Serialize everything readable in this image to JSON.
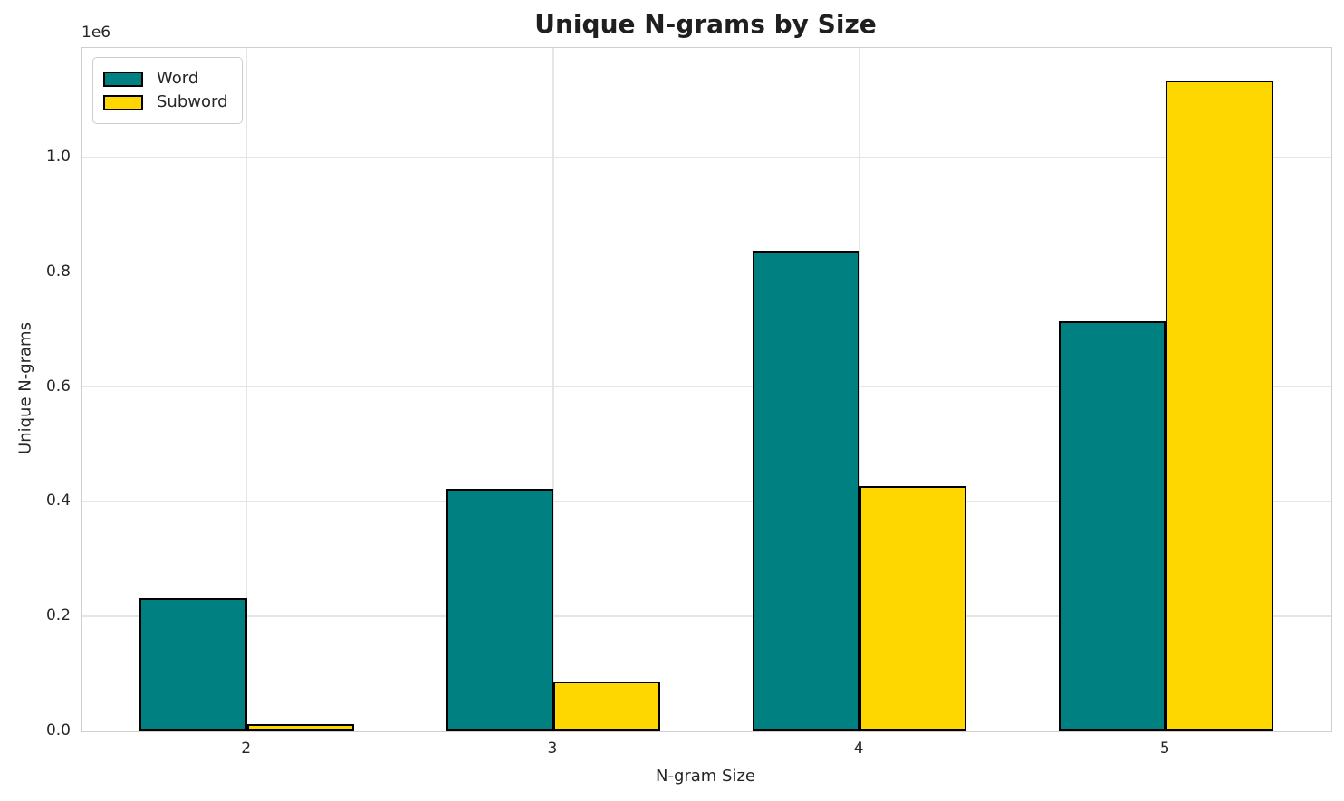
{
  "chart_data": {
    "type": "bar",
    "title": "Unique N-grams by Size",
    "xlabel": "N-gram Size",
    "ylabel": "Unique N-grams",
    "y_offset_label": "1e6",
    "categories": [
      "2",
      "3",
      "4",
      "5"
    ],
    "series": [
      {
        "name": "Word",
        "color": "#008080",
        "values": [
          232000,
          423000,
          838000,
          715000
        ]
      },
      {
        "name": "Subword",
        "color": "#FFD700",
        "values": [
          12000,
          87000,
          428000,
          1134000
        ]
      }
    ],
    "bar_width": 0.35,
    "bar_edge_color": "#000000",
    "xlim": [
      -0.54,
      3.54
    ],
    "ylim": [
      0,
      1190700
    ],
    "ytick_values": [
      0,
      200000,
      400000,
      600000,
      800000,
      1000000
    ],
    "ytick_labels": [
      "0.0",
      "0.2",
      "0.4",
      "0.6",
      "0.8",
      "1.0"
    ],
    "grid": true,
    "legend_position": "upper left",
    "colors": {
      "grid": "#e5e5e5",
      "spine": "#cfcfcf",
      "text": "#262626"
    }
  }
}
